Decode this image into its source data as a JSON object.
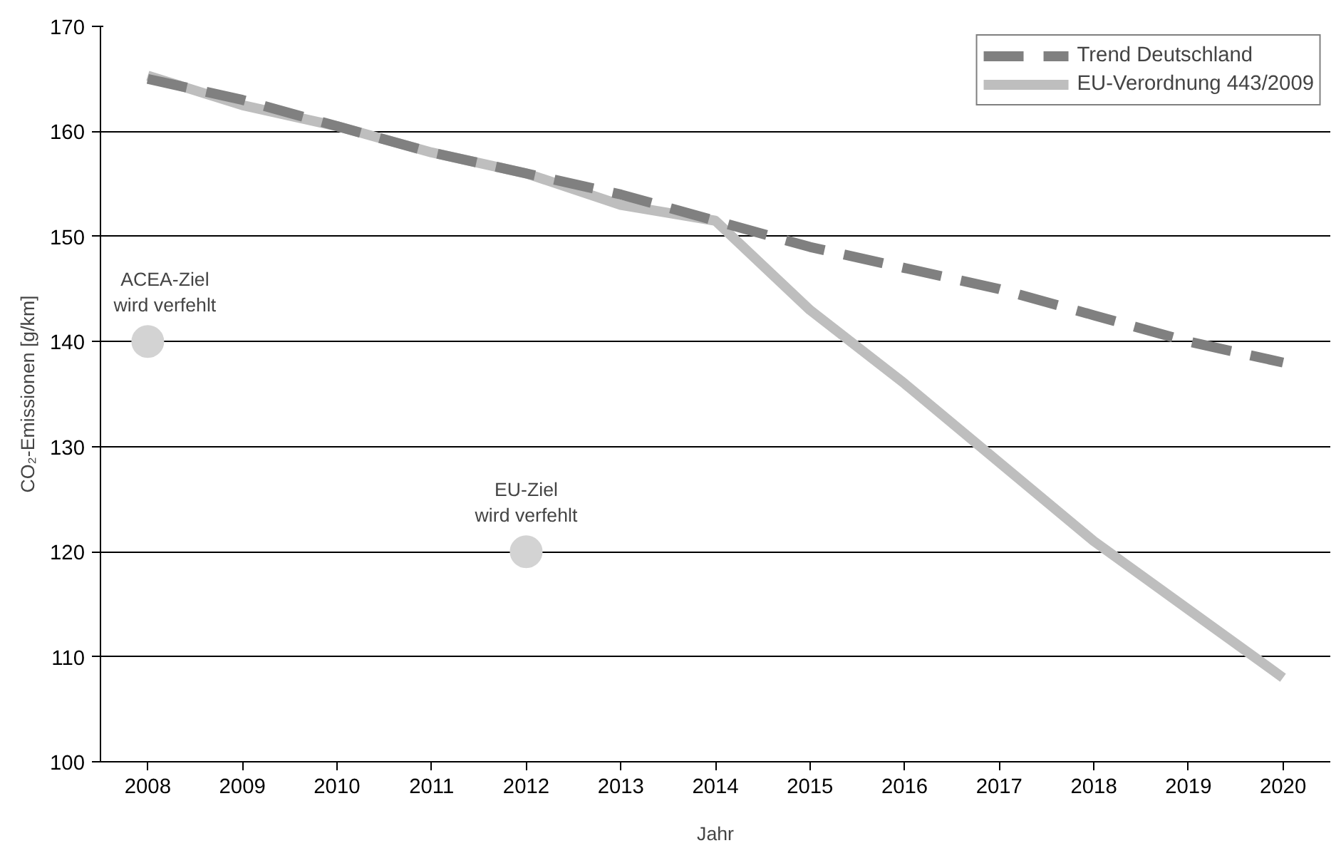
{
  "chart_data": {
    "type": "line",
    "xlabel": "Jahr",
    "ylabel": "CO₂-Emissionen [g/km]",
    "categories": [
      "2008",
      "2009",
      "2010",
      "2011",
      "2012",
      "2013",
      "2014",
      "2015",
      "2016",
      "2017",
      "2018",
      "2019",
      "2020"
    ],
    "series": [
      {
        "name": "Trend Deutschland",
        "color": "#808080",
        "line_style": "dashed",
        "values": [
          165,
          163,
          160.5,
          158,
          156,
          154,
          151.5,
          149,
          147,
          145,
          142.5,
          140,
          138
        ]
      },
      {
        "name": "EU-Verordnung 443/2009",
        "color": "#bebebe",
        "line_style": "solid",
        "values": [
          165.3,
          162.5,
          160.5,
          158,
          156,
          153,
          151.5,
          143,
          136,
          128.5,
          121,
          114.5,
          108
        ]
      },
      {
        "type": "scatter",
        "color": "#d3d3d3",
        "marker": "circle",
        "values": [
          140,
          null,
          null,
          null,
          120,
          null,
          null,
          null,
          null,
          null,
          null,
          null,
          null
        ]
      }
    ],
    "ylim": [
      100,
      170
    ],
    "yticks": [
      100,
      110,
      120,
      130,
      140,
      150,
      160,
      170
    ],
    "grid": "y",
    "legend": "top right",
    "annotations": [
      {
        "text": "ACEA-Ziel\nwird verfehlt",
        "x": "2008",
        "y": 140
      },
      {
        "text": "EU-Ziel\nwird verfehlt",
        "x": "2012",
        "y": 120
      }
    ]
  }
}
